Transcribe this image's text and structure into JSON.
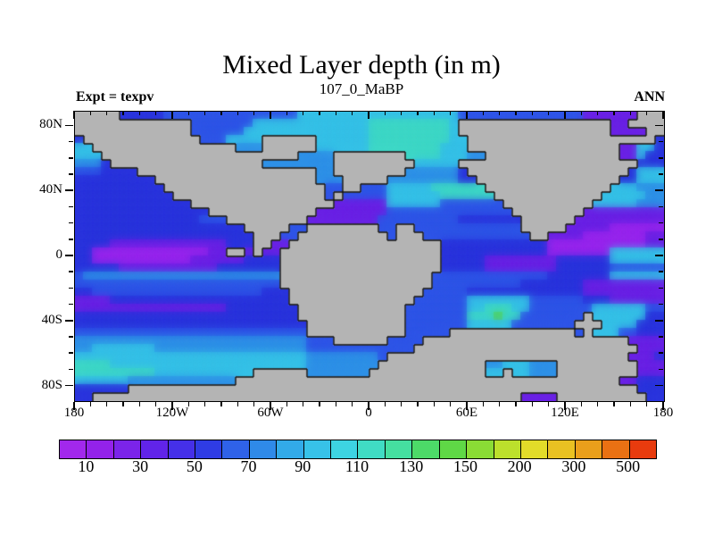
{
  "header": {
    "title": "Mixed Layer depth (in m)",
    "subtitle": "107_0_MaBP",
    "experiment_label": "Expt = texpv",
    "season_label": "ANN"
  },
  "chart_data": {
    "type": "heatmap",
    "title": "Mixed Layer depth (in m)",
    "subtitle": "107_0_MaBP",
    "units": "m",
    "legend_position": "bottom",
    "x_axis": {
      "range_deg": [
        -180,
        180
      ],
      "minor_tick_step_deg": 10,
      "major_tick_step_deg": 60,
      "label_ticks": [
        {
          "lon": -180,
          "label": "180"
        },
        {
          "lon": -120,
          "label": "120W"
        },
        {
          "lon": -60,
          "label": "60W"
        },
        {
          "lon": 0,
          "label": "0"
        },
        {
          "lon": 60,
          "label": "60E"
        },
        {
          "lon": 120,
          "label": "120E"
        },
        {
          "lon": 180,
          "label": "180"
        }
      ]
    },
    "y_axis": {
      "range_deg": [
        -89,
        89
      ],
      "minor_tick_step_deg": 10,
      "major_tick_step_deg": 40,
      "label_ticks": [
        {
          "lat": 80,
          "label": "80N"
        },
        {
          "lat": 40,
          "label": "40N"
        },
        {
          "lat": 0,
          "label": "0"
        },
        {
          "lat": -40,
          "label": "40S"
        },
        {
          "lat": -80,
          "label": "80S"
        }
      ]
    },
    "colorbar": {
      "labels": [
        "10",
        "30",
        "50",
        "70",
        "90",
        "110",
        "130",
        "150",
        "200",
        "300",
        "500"
      ],
      "colors": [
        "#a228ec",
        "#9322ea",
        "#7b24e9",
        "#6124e9",
        "#4530e8",
        "#2f3ce4",
        "#2f62e8",
        "#2f8ae8",
        "#32aae8",
        "#37c2e8",
        "#3dd4e2",
        "#40dcc4",
        "#45dfa0",
        "#4cda68",
        "#5fd846",
        "#8adc35",
        "#bce02c",
        "#e2dc29",
        "#e9c122",
        "#ea9f1b",
        "#ea7113",
        "#e83b0e"
      ]
    },
    "map_grid": {
      "cols": 66,
      "rows": 36,
      "land_char": "G",
      "land_color": "#b4b4b4",
      "coast_color": "#101010",
      "palette": {
        ".": "#2b35de",
        "B": "#2f55e8",
        "C": "#2f92e8",
        "T": "#36c2e8",
        "A": "#3fd9c8",
        "P": "#6b22e6",
        "V": "#9826ee",
        "g": "#55d44e",
        "G": "#b4b4b4"
      },
      "rows_data": [
        "GGGGG.....BBBBBBBBBBBBBBBTTTTTTTTTTTTTTTTTTBBBBBBBBBBBBBBPPPPPPGGG",
        "GGGGGGGGGGGGGBBBBBBBTTTTTTTTTTTTTAAAAAAAAATGGGGGGGGGGGGGGGGGPPGGGG",
        "GGGGGGGGGGGGGBBBBBBTTTTTTTTTTTTTTAAAAAAAAATGGGGGGGGGGGGGGGGGPPPPGG",
        ".GGGGGGGGGGGGGBBBTTTTGGGGGGTTTTTTAAAAAAAAATTGGGGGGGGGGGGGGGGGGGGG.",
        "TTGGGGGGGGGGGGGGGGCCCGGGGGGTTTTTTAAAAAAAATTTGGGGGGGGGGGGGGGGGPPTT.",
        "TTTGGGGGGGGGGGGGGGGGGGGGGCCCCGGGGGGGGAAAATTTCCGGGGGGGGGGGGGGGPPT..",
        "CCC.GGGGGGGGGGGGGGGGGCCCCCCCCGGGGGGGGGTTTTTGGGGGGGGGGGGGGGGGGGG...",
        "BBB....GGGGGGGGGGGGGGGGGGGGCCGGGGGGGGCCCCCC.GGGGGGGGGGGGGGGGGG.TTT",
        ".........GGGGGGGGGGGGGGGGGGCCCGGGGGCCCCCCCC..GGGGGGGGGGGGGGGG..TTT",
        "..........GGGGGGGGGGGGGGGGGGBBGGBBBTTTTTAAAAAAGGGGGGGGGGGGGGTTTCCC",
        "...........GGGGGGGGGGGGGGGGGBGBBBBBTTTTTTAAAAAAGGGGGGGGGGGGTTTTTCC",
        ".............GGGGGGGGGGGGGGGGPPPPPPTTTTTTBBBBBBBGGGGGGGGGGTTTTTCCC",
        "...............GGGGGGGGGGGGPPPPPPPPBBBBBBBBBBBBBBGGGGGGGGPPPPPPPPP",
        "..............BBBGGGGGGGGGPPPPPPPPBBBBBBBBB.......GGGGGGPPPPPPPPPP",
        "...................GGGGGBBGGGGGGGGBBGGBBBBBBBBBBBBGGGGGPPPPPVVVVVV",
        "....................GGGBBGGGGGGGGGGBGGGBBBBBBBBBBBBGGPPPPVVVVVVVPP",
        "....PPPPPPPPPPPPP...GGPPGGGGGGGGGGGGGGGGG............VVVVVVVVVVVPP",
        "..VVVVVVVVVVVVVPPGGPGPPGGGGGGGGGGGGGGGGGG............VVVVVVVTTTTTT",
        "..VVVVVVVVVVVPPPPPP....GGGGGGGGGGGGGGGGGG.....PPPPPPPP......TTTTTT",
        ".....PPPPPPPPPPP.......GGGGGGGGGGGGGGGGGG.....PPPPPPPP......BBBBBB",
        "BCCCCCCCCCCCCCCCCCCCCCCGGGGGGGGGGGGGGGGGBBBBBBBBBBBBB.......TTTTTT",
        "BBBBBBBBBBBBBBBBBBBBBBBGGGGGGGGGGGGGGGGGBBBBBBBBBB.......PPPPPPPPP",
        "..BBBBBBBBBBBBBBBBBBB...GGGGGGGGGGGGGGGBBBBB.............PPPPPPPPP",
        "PPPP....................GGGGGGGGGGGGGGBBBBBBTTTTTTTBBBBBB...PPPPPP",
        "PPPPPPPPPPPPPPPPP........GGGGGGGGGGGGBBBBBBBTTAAATTBBBBBBBTTTTTTBB",
        ".........................GGGGGGGGGGGGBBBBBBBAAAgAABBBBBBBGTTTTTT..",
        "..........................GGGGGGGGGGGBBBBBBBTTTTTBBBBBBBGGGTTTT...",
        "BBBBBBBBBBBBBBBBBBBBBBBBBBGGGGGGGGGGGBBBBBGGGGGGGGGGGGGGBGTTTBB...",
        "CCCCCCCCCCCCCCCCCCCCCCCCCCBBBGGGGGGBBBBGGGGGGGGGGGGGGGGGGGGGGGPPPP",
        "CCTTTTTTTCCCCCCCCCCCCCCCCCBBBBBBBBBBBBGGGGGGGGGGGGGGGGGGGGGGGGGPPP",
        "TTTTTTTTTTTTTTTTTTTTTTTTTTCCCCCCCCBGGGGGGGGGGGGGGGGGGGGGGGGGGGPPP",
        "AAAATTTTTTTTTTTTTTTTTTTTTTCCCCCCCCGGGGGGGGGGGGCCTTTCCCGGGGGGGGGPPP",
        "AAAAAAAAATTTTTTTTTTTGGGGGGCCCCCCCGGGGGGGGGGGGGTTGTTCCCGGGGGGGGGPPP",
        "TTTTTTCCCCCCCCCCCCGGGGGGGGGGGGGGGGGGGGGGGGGGGGGGGGGGGGGGGGGGGPP.",
        "......GGGGGGGGGGGGGGGGGGGGGGGGGGGGGGGGGGGGGGGGGGGGGGGGGGGGGGGGG.",
        "..GGGGGGGGGGGGGGGGGGGGGGGGGGGGGGGGGGGGGGGGGGGGGGGGPPPPGGGGGGGGGG"
      ]
    }
  }
}
